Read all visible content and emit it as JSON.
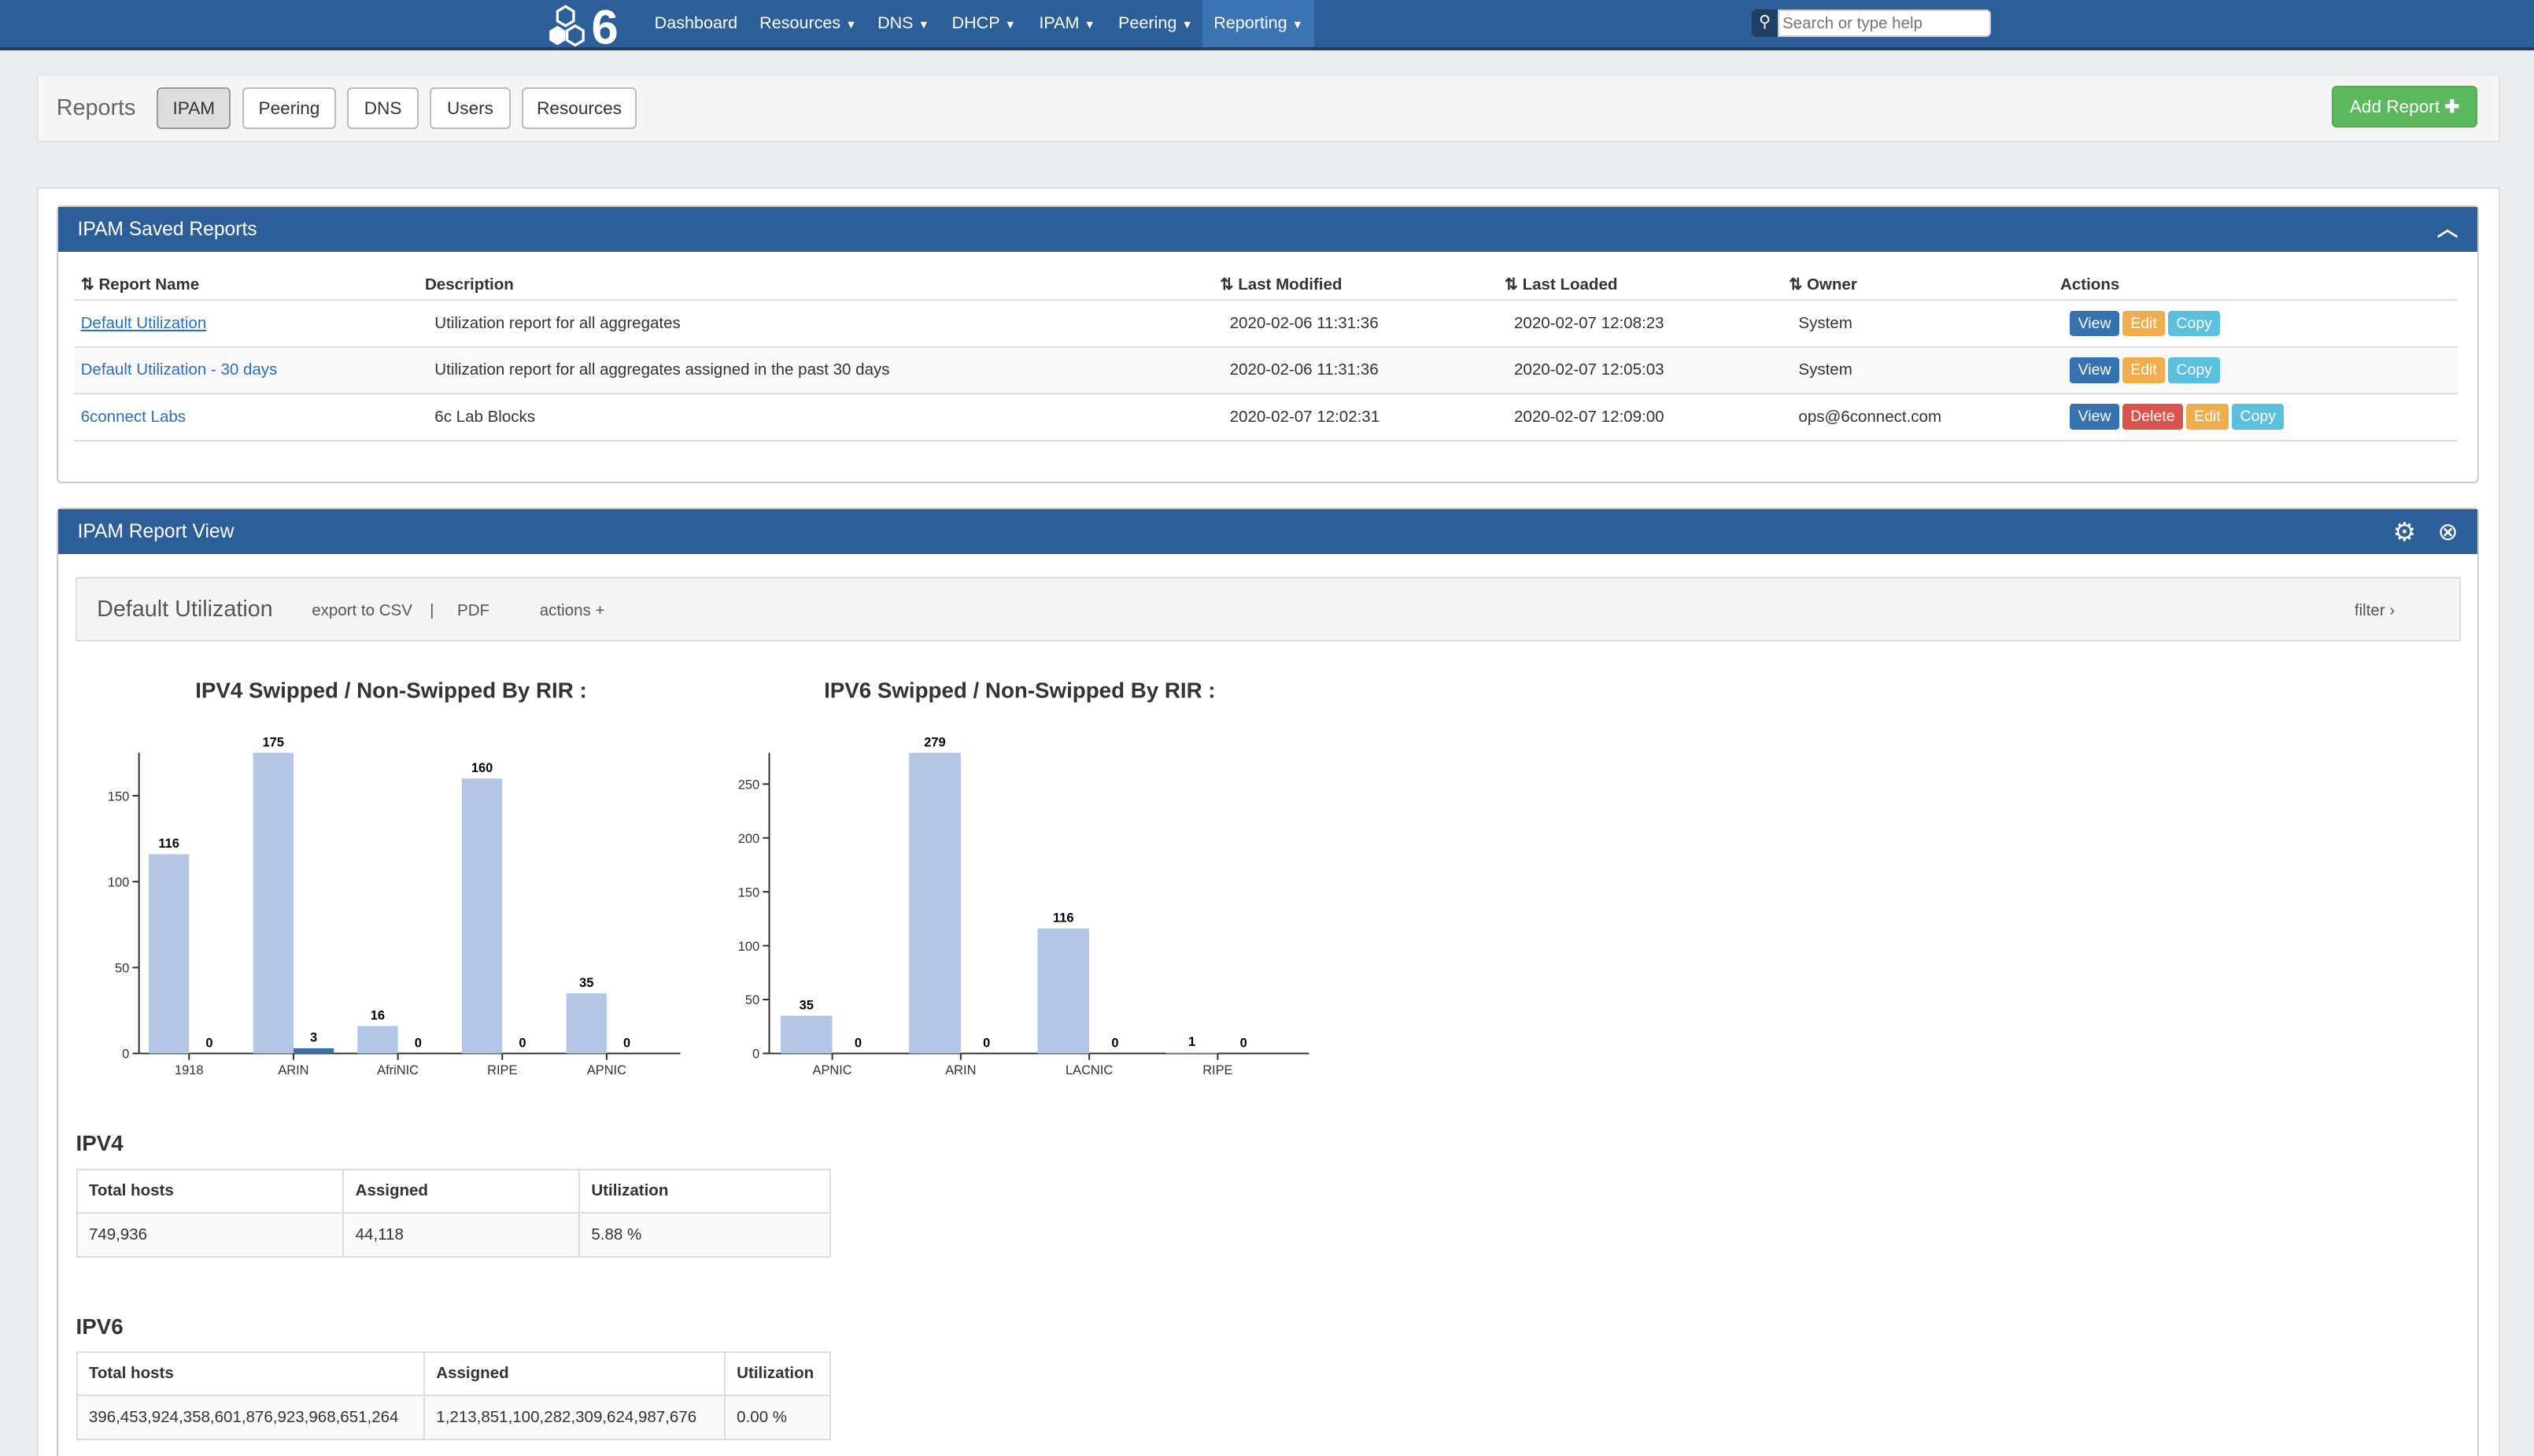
{
  "nav": {
    "logo_text": "6",
    "items": [
      "Dashboard",
      "Resources",
      "DNS",
      "DHCP",
      "IPAM",
      "Peering",
      "Reporting"
    ],
    "dropdowns": [
      false,
      true,
      true,
      true,
      true,
      true,
      true
    ],
    "active": "Reporting",
    "search_placeholder": "Search or type help"
  },
  "reports_bar": {
    "title": "Reports",
    "tabs": [
      "IPAM",
      "Peering",
      "DNS",
      "Users",
      "Resources"
    ],
    "active_tab": "IPAM",
    "add_label": "Add Report"
  },
  "saved": {
    "title": "IPAM Saved Reports",
    "columns": [
      "Report Name",
      "Description",
      "Last Modified",
      "Last Loaded",
      "Owner",
      "Actions"
    ],
    "rows": [
      {
        "name": "Default Utilization",
        "description": "Utilization report for all aggregates",
        "modified": "2020-02-06 11:31:36",
        "loaded": "2020-02-07 12:08:23",
        "owner": "System",
        "actions": [
          "View",
          "Edit",
          "Copy"
        ]
      },
      {
        "name": "Default Utilization - 30 days",
        "description": "Utilization report for all aggregates assigned in the past 30 days",
        "modified": "2020-02-06 11:31:36",
        "loaded": "2020-02-07 12:05:03",
        "owner": "System",
        "actions": [
          "View",
          "Edit",
          "Copy"
        ]
      },
      {
        "name": "6connect Labs",
        "description": "6c Lab Blocks",
        "modified": "2020-02-07 12:02:31",
        "loaded": "2020-02-07 12:09:00",
        "owner": "ops@6connect.com",
        "actions": [
          "View",
          "Delete",
          "Edit",
          "Copy"
        ]
      }
    ]
  },
  "view": {
    "title": "IPAM Report View",
    "report_name": "Default Utilization",
    "export_csv": "export to CSV",
    "sep": "|",
    "pdf": "PDF",
    "actions": "actions +",
    "filter": "filter"
  },
  "chart_data": [
    {
      "type": "bar",
      "title": "IPV4 Swipped / Non-Swipped By RIR :",
      "categories": [
        "1918",
        "ARIN",
        "AfriNIC",
        "RIPE",
        "APNIC"
      ],
      "series": [
        {
          "values": [
            116,
            175,
            16,
            160,
            35
          ],
          "color": "#b3c7e5"
        },
        {
          "values": [
            0,
            3,
            0,
            0,
            0
          ],
          "color": "#3c6fa8"
        }
      ],
      "yticks": [
        0,
        50,
        100,
        150
      ],
      "ylim": [
        0,
        175
      ]
    },
    {
      "type": "bar",
      "title": "IPV6 Swipped / Non-Swipped By RIR :",
      "categories": [
        "APNIC",
        "ARIN",
        "LACNIC",
        "RIPE"
      ],
      "series": [
        {
          "values": [
            35,
            279,
            116,
            1
          ],
          "color": "#b3c7e5"
        },
        {
          "values": [
            0,
            0,
            0,
            0
          ],
          "color": "#3c6fa8"
        }
      ],
      "yticks": [
        0,
        50,
        100,
        150,
        200,
        250
      ],
      "ylim": [
        0,
        279
      ]
    }
  ],
  "ipv4": {
    "title": "IPV4",
    "headers": [
      "Total hosts",
      "Assigned",
      "Utilization"
    ],
    "values": [
      "749,936",
      "44,118",
      "5.88 %"
    ]
  },
  "ipv6": {
    "title": "IPV6",
    "headers": [
      "Total hosts",
      "Assigned",
      "Utilization"
    ],
    "values": [
      "396,453,924,358,601,876,923,968,651,264",
      "1,213,851,100,282,309,624,987,676",
      "0.00 %"
    ]
  }
}
